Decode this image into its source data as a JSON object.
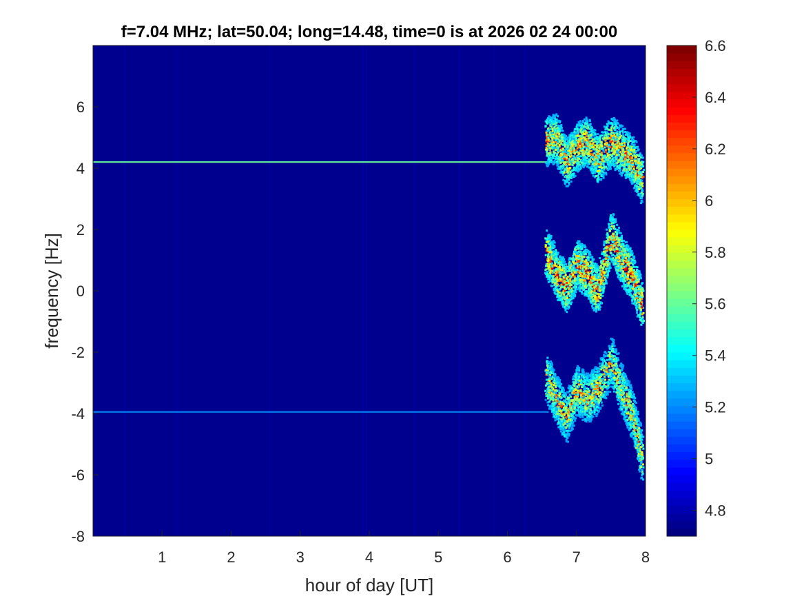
{
  "chart_data": {
    "type": "heatmap",
    "title": "f=7.04 MHz;  lat=50.04; long=14.48, time=0 is at 2026 02 24 00:00",
    "xlabel": "hour of day [UT]",
    "ylabel": "frequency [Hz]",
    "xlim": [
      0,
      8
    ],
    "ylim": [
      -8,
      8
    ],
    "clim": [
      4.7,
      6.6
    ],
    "colormap": "jet",
    "background_value": 4.72,
    "x_ticks": [
      "1",
      "2",
      "3",
      "4",
      "5",
      "6",
      "7",
      "8"
    ],
    "x_tick_values": [
      1,
      2,
      3,
      4,
      5,
      6,
      7,
      8
    ],
    "y_ticks": [
      "6",
      "4",
      "2",
      "0",
      "-2",
      "-4",
      "-6",
      "-8"
    ],
    "y_tick_values": [
      6,
      4,
      2,
      0,
      -2,
      -4,
      -6,
      -8
    ],
    "colorbar_ticks": [
      "6.6",
      "6.4",
      "6.2",
      "6",
      "5.8",
      "5.6",
      "5.4",
      "5.2",
      "5",
      "4.8"
    ],
    "colorbar_tick_values": [
      6.6,
      6.4,
      6.2,
      6.0,
      5.8,
      5.6,
      5.4,
      5.2,
      5.0,
      4.8
    ],
    "features": [
      {
        "name": "carrier line",
        "freq_hz": 4.2,
        "x_from": 0,
        "x_to": 7.4,
        "value": 5.6
      },
      {
        "name": "carrier line",
        "freq_hz": -3.95,
        "x_from": 0,
        "x_to": 6.6,
        "value": 5.2
      }
    ],
    "traces": [
      {
        "name": "upper band",
        "points": [
          [
            6.55,
            4.9
          ],
          [
            6.7,
            5.0
          ],
          [
            6.85,
            4.2
          ],
          [
            7.0,
            4.7
          ],
          [
            7.15,
            4.9
          ],
          [
            7.3,
            4.3
          ],
          [
            7.5,
            4.9
          ],
          [
            7.65,
            4.6
          ],
          [
            7.8,
            4.3
          ],
          [
            7.95,
            3.6
          ]
        ],
        "value": 6.3
      },
      {
        "name": "middle band",
        "points": [
          [
            6.55,
            1.3
          ],
          [
            6.7,
            0.6
          ],
          [
            6.85,
            0.1
          ],
          [
            7.0,
            0.9
          ],
          [
            7.15,
            0.6
          ],
          [
            7.3,
            0.0
          ],
          [
            7.5,
            1.8
          ],
          [
            7.65,
            1.0
          ],
          [
            7.8,
            0.5
          ],
          [
            7.95,
            -0.5
          ]
        ],
        "value": 6.4
      },
      {
        "name": "lower band",
        "points": [
          [
            6.55,
            -2.8
          ],
          [
            6.7,
            -3.5
          ],
          [
            6.85,
            -4.1
          ],
          [
            7.0,
            -3.2
          ],
          [
            7.15,
            -3.5
          ],
          [
            7.3,
            -3.2
          ],
          [
            7.5,
            -2.3
          ],
          [
            7.65,
            -3.2
          ],
          [
            7.8,
            -4.0
          ],
          [
            7.95,
            -5.5
          ]
        ],
        "value": 6.2
      }
    ]
  }
}
